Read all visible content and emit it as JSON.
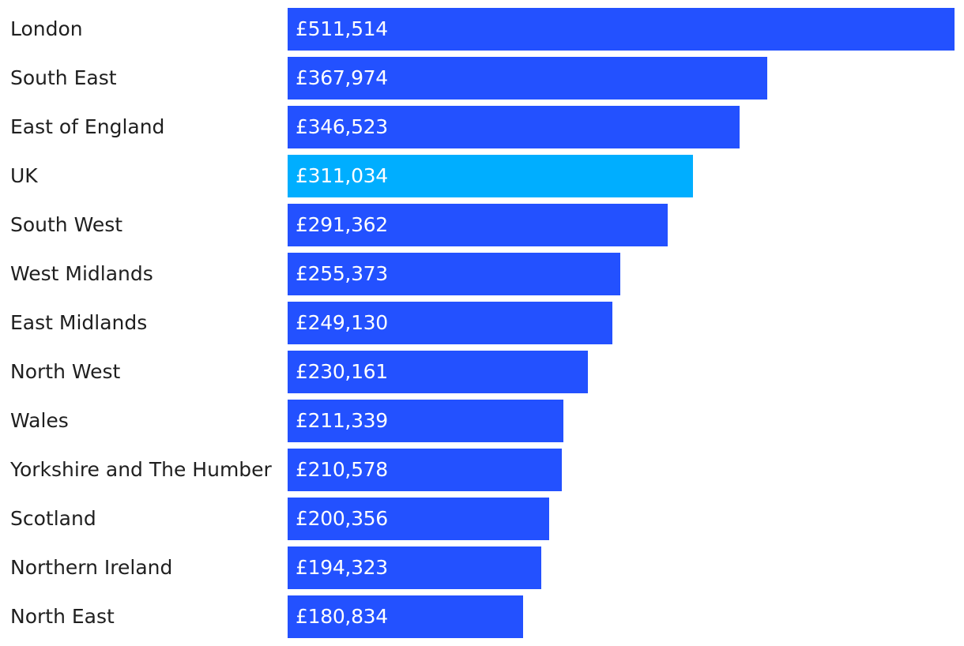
{
  "chart_data": {
    "type": "bar",
    "orientation": "horizontal",
    "categories": [
      "London",
      "South East",
      "East of England",
      "UK",
      "South West",
      "West Midlands",
      "East Midlands",
      "North West",
      "Wales",
      "Yorkshire and The Humber",
      "Scotland",
      "Northern Ireland",
      "North East"
    ],
    "values": [
      511514,
      367974,
      346523,
      311034,
      291362,
      255373,
      249130,
      230161,
      211339,
      210578,
      200356,
      194323,
      180834
    ],
    "value_labels": [
      "£511,514",
      "£367,974",
      "£346,523",
      "£311,034",
      "£291,362",
      "£255,373",
      "£249,130",
      "£230,161",
      "£211,339",
      "£210,578",
      "£200,356",
      "£194,323",
      "£180,834"
    ],
    "highlight_category": "UK",
    "colors": {
      "bar": "#2351ff",
      "highlight": "#00aeff",
      "label_text": "#1f1f1f",
      "value_text": "#ffffff"
    },
    "xlim": [
      0,
      511514
    ],
    "grid": false,
    "legend": "none"
  }
}
